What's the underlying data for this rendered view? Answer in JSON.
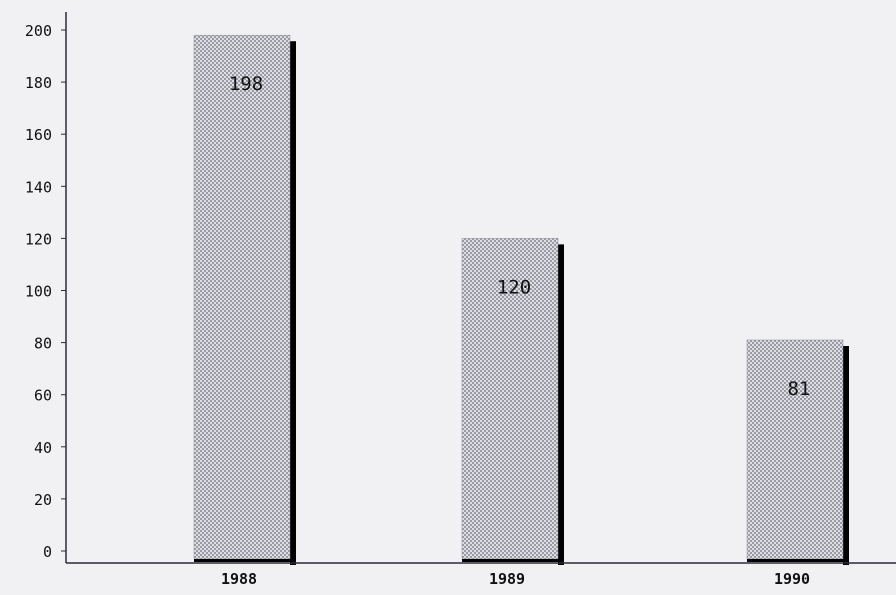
{
  "chart_data": {
    "type": "bar",
    "categories": [
      "1988",
      "1989",
      "1990"
    ],
    "values": [
      198,
      120,
      81
    ],
    "data_labels": [
      "198",
      "120",
      "81"
    ],
    "title": "",
    "xlabel": "",
    "ylabel": "",
    "ylim": [
      0,
      200
    ],
    "yticks": [
      0,
      20,
      40,
      60,
      80,
      100,
      120,
      140,
      160,
      180,
      200
    ],
    "grid": false,
    "legend": "none",
    "colors": {
      "bar_fill": "#9a9aa2",
      "bar_dots": "#dedee6",
      "bar_shadow": "#000000",
      "axis": "#2a2a3a",
      "tick_text": "#111111",
      "background": "#f1f1f4"
    }
  }
}
